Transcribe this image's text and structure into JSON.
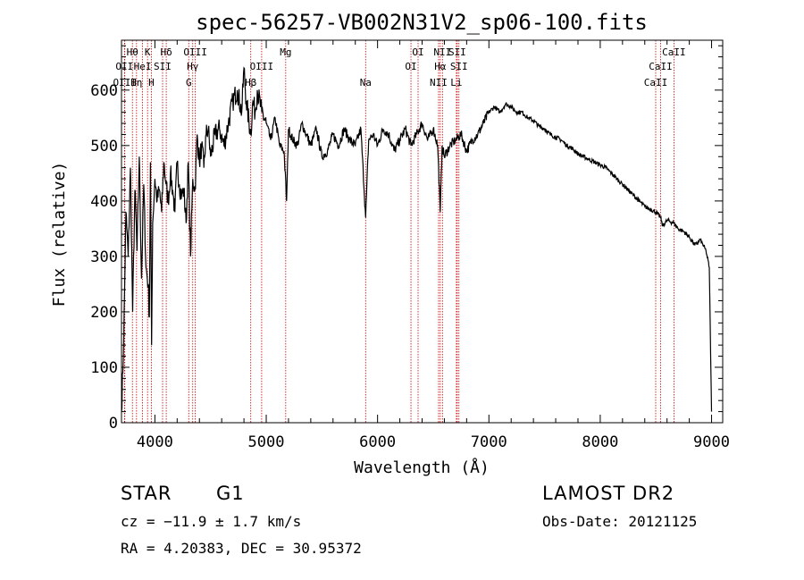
{
  "chart_data": {
    "type": "line",
    "title": "spec-56257-VB002N31V2_sp06-100.fits",
    "xlabel": "Wavelength (Å)",
    "ylabel": "Flux (relative)",
    "xlim": [
      3700,
      9100
    ],
    "ylim": [
      0,
      690
    ],
    "x_ticks": [
      4000,
      5000,
      6000,
      7000,
      8000,
      9000
    ],
    "y_ticks": [
      0,
      100,
      200,
      300,
      400,
      500,
      600
    ],
    "grid": false,
    "series": [
      {
        "name": "spectrum",
        "x": [
          3700,
          3720,
          3740,
          3760,
          3780,
          3800,
          3820,
          3840,
          3860,
          3880,
          3900,
          3920,
          3940,
          3950,
          3960,
          3970,
          3980,
          4000,
          4020,
          4040,
          4060,
          4080,
          4100,
          4120,
          4140,
          4160,
          4180,
          4200,
          4220,
          4240,
          4260,
          4280,
          4300,
          4320,
          4340,
          4360,
          4380,
          4400,
          4420,
          4440,
          4460,
          4480,
          4500,
          4540,
          4580,
          4620,
          4660,
          4700,
          4740,
          4780,
          4800,
          4820,
          4861,
          4880,
          4900,
          4920,
          4960,
          5000,
          5040,
          5080,
          5120,
          5160,
          5183,
          5200,
          5240,
          5280,
          5320,
          5360,
          5400,
          5450,
          5500,
          5550,
          5600,
          5650,
          5700,
          5750,
          5800,
          5850,
          5893,
          5920,
          5960,
          6000,
          6050,
          6100,
          6150,
          6200,
          6250,
          6300,
          6350,
          6400,
          6450,
          6500,
          6540,
          6563,
          6580,
          6600,
          6650,
          6700,
          6750,
          6800,
          6850,
          6900,
          6950,
          7000,
          7050,
          7100,
          7150,
          7200,
          7250,
          7300,
          7350,
          7400,
          7450,
          7500,
          7550,
          7600,
          7650,
          7700,
          7750,
          7800,
          7850,
          7900,
          7950,
          8000,
          8050,
          8100,
          8150,
          8200,
          8250,
          8300,
          8350,
          8400,
          8450,
          8500,
          8542,
          8560,
          8600,
          8662,
          8700,
          8750,
          8800,
          8850,
          8900,
          8950,
          8980,
          9000
        ],
        "y": [
          20,
          150,
          380,
          300,
          460,
          200,
          420,
          310,
          480,
          260,
          430,
          280,
          250,
          190,
          470,
          140,
          360,
          440,
          400,
          420,
          380,
          470,
          430,
          400,
          450,
          420,
          380,
          470,
          430,
          410,
          420,
          360,
          470,
          300,
          440,
          420,
          520,
          470,
          500,
          460,
          520,
          530,
          480,
          520,
          530,
          500,
          540,
          580,
          600,
          560,
          640,
          580,
          520,
          580,
          560,
          600,
          560,
          540,
          510,
          550,
          500,
          490,
          400,
          530,
          510,
          500,
          540,
          520,
          500,
          530,
          480,
          490,
          520,
          500,
          530,
          510,
          500,
          530,
          370,
          510,
          520,
          500,
          530,
          520,
          490,
          510,
          530,
          500,
          520,
          540,
          510,
          530,
          500,
          380,
          500,
          480,
          500,
          510,
          520,
          490,
          510,
          520,
          540,
          560,
          570,
          560,
          575,
          570,
          560,
          560,
          550,
          545,
          535,
          530,
          520,
          515,
          510,
          500,
          495,
          485,
          480,
          475,
          470,
          465,
          460,
          450,
          440,
          430,
          420,
          410,
          400,
          390,
          385,
          380,
          370,
          355,
          365,
          360,
          350,
          345,
          335,
          320,
          330,
          310,
          280,
          20
        ]
      }
    ],
    "line_markers": [
      {
        "label": "Hθ",
        "wavelength": 3798,
        "row": 1
      },
      {
        "label": "OII",
        "wavelength": 3727,
        "row": 2
      },
      {
        "label": "OIII",
        "wavelength": 3730,
        "row": 3
      },
      {
        "label": "Hη",
        "wavelength": 3835,
        "row": 3
      },
      {
        "label": "HeI",
        "wavelength": 3889,
        "row": 2
      },
      {
        "label": "K",
        "wavelength": 3934,
        "row": 1
      },
      {
        "label": "H",
        "wavelength": 3968,
        "row": 3
      },
      {
        "label": "SII",
        "wavelength": 4069,
        "row": 2
      },
      {
        "label": "Hδ",
        "wavelength": 4102,
        "row": 1
      },
      {
        "label": "OIII",
        "wavelength": 4363,
        "row": 1
      },
      {
        "label": "Hγ",
        "wavelength": 4340,
        "row": 2
      },
      {
        "label": "G",
        "wavelength": 4304,
        "row": 3
      },
      {
        "label": "Hβ",
        "wavelength": 4861,
        "row": 3
      },
      {
        "label": "OIII",
        "wavelength": 4959,
        "row": 2
      },
      {
        "label": "Mg",
        "wavelength": 5175,
        "row": 1
      },
      {
        "label": "Na",
        "wavelength": 5893,
        "row": 3
      },
      {
        "label": "OI",
        "wavelength": 6364,
        "row": 1
      },
      {
        "label": "OI",
        "wavelength": 6300,
        "row": 2
      },
      {
        "label": "NII",
        "wavelength": 6583,
        "row": 1
      },
      {
        "label": "SII",
        "wavelength": 6716,
        "row": 1
      },
      {
        "label": "Hα",
        "wavelength": 6563,
        "row": 2
      },
      {
        "label": "SII",
        "wavelength": 6731,
        "row": 2
      },
      {
        "label": "NII",
        "wavelength": 6548,
        "row": 3
      },
      {
        "label": "Li",
        "wavelength": 6708,
        "row": 3
      },
      {
        "label": "CaII",
        "wavelength": 8662,
        "row": 1
      },
      {
        "label": "CaII",
        "wavelength": 8542,
        "row": 2
      },
      {
        "label": "CaII",
        "wavelength": 8498,
        "row": 3
      }
    ]
  },
  "info": {
    "object_class": "STAR",
    "subclass": "G1",
    "survey": "LAMOST DR2",
    "cz": "cz = −11.9 ± 1.7 km/s",
    "obs_date": "Obs-Date: 20121125",
    "coords": "RA =   4.20383, DEC =  30.95372"
  },
  "colors": {
    "spectrum": "#000000",
    "marker_line": "#cc0000",
    "axes": "#000000"
  }
}
